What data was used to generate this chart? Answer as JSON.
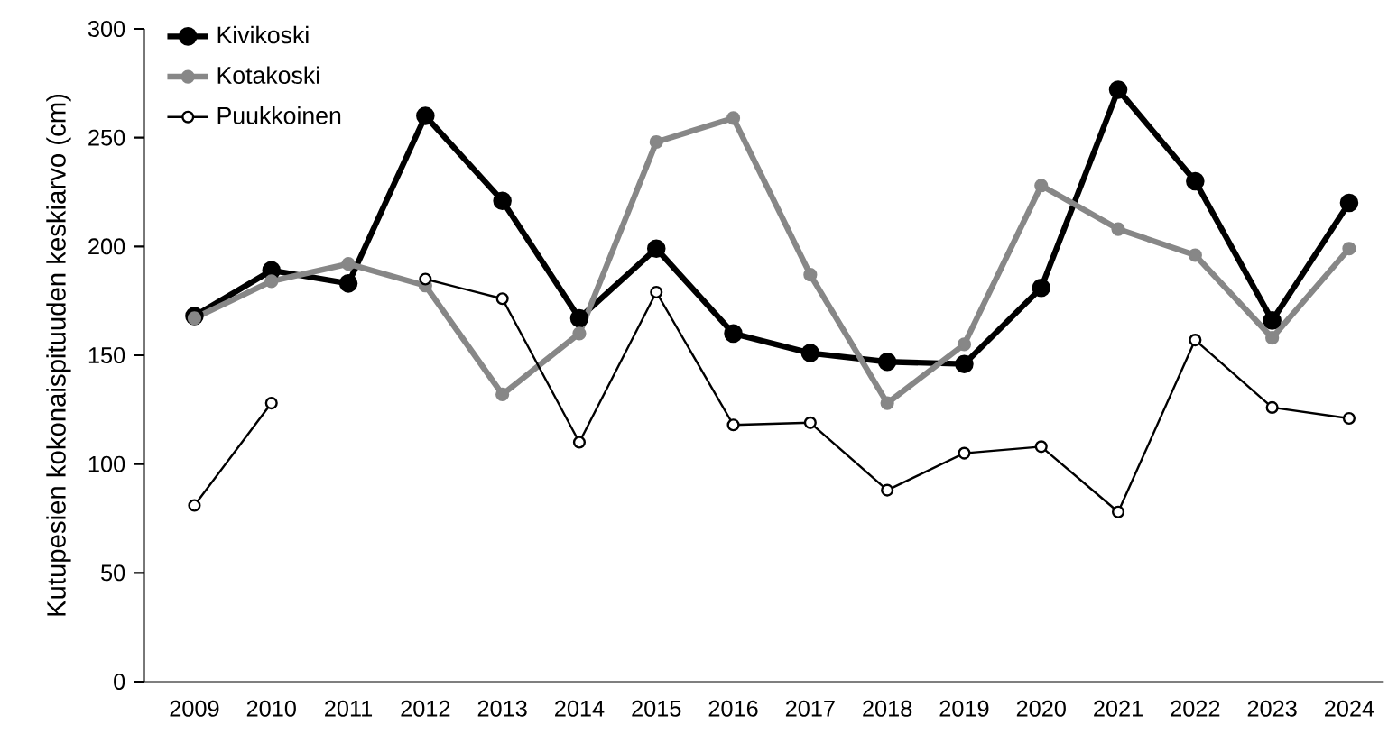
{
  "chart_data": {
    "type": "line",
    "ylabel": "Kutupesien kokonaispituuden keskiarvo (cm)",
    "categories": [
      "2009",
      "2010",
      "2011",
      "2012",
      "2013",
      "2014",
      "2015",
      "2016",
      "2017",
      "2018",
      "2019",
      "2020",
      "2021",
      "2022",
      "2023",
      "2024"
    ],
    "series": [
      {
        "name": "Kivikoski",
        "color": "#000000",
        "values": [
          168,
          189,
          183,
          260,
          221,
          167,
          199,
          160,
          151,
          147,
          146,
          181,
          272,
          230,
          166,
          220
        ]
      },
      {
        "name": "Kotakoski",
        "color": "#878787",
        "values": [
          167,
          184,
          192,
          182,
          132,
          160,
          248,
          259,
          187,
          128,
          155,
          228,
          208,
          196,
          158,
          199
        ]
      },
      {
        "name": "Puukkoinen",
        "color": "#000000",
        "values": [
          81,
          128,
          null,
          185,
          176,
          110,
          179,
          118,
          119,
          88,
          105,
          108,
          78,
          157,
          126,
          121
        ]
      }
    ],
    "ylim": [
      0,
      300
    ],
    "yticks": [
      0,
      50,
      100,
      150,
      200,
      250,
      300
    ],
    "marker": "circle",
    "legend": "top left",
    "grid": false
  }
}
